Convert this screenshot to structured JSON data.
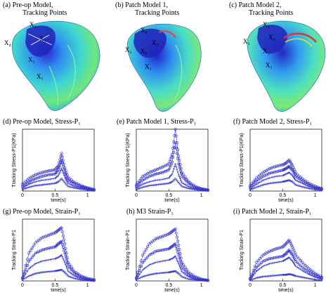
{
  "top_panels": [
    {
      "label_line1": "(a) Pre-op Model,",
      "label_line2": "Tracking Points",
      "points": [
        "X₃",
        "X₂",
        "X₄",
        "X₅",
        "X₁"
      ]
    },
    {
      "label_line1": "(b) Patch Model 1,",
      "label_line2": "Tracking Points",
      "points": [
        "X₄",
        "X₃",
        "X₂",
        "X₅",
        "X₁"
      ]
    },
    {
      "label_line1": "(c) Patch Model 2,",
      "label_line2": "Tracking Points",
      "points": [
        "X₃",
        "X₄",
        "X₂",
        "X₅",
        "X₁"
      ]
    }
  ],
  "plot_labels": {
    "d": "(d) Pre-op Model, Stress-P₁",
    "e": "(e) Patch Model 1, Stress-P₁",
    "f": "(f) Patch Model 2, Stress-P₁",
    "g": "(g) Pre-op Model, Strain-P₁",
    "h": "(h) M3 Strain-P₁",
    "i": "(i) Patch Model 2, Strain-P₁"
  },
  "xlabel": "time(s)",
  "stress_ylabel": "Tracking Stress-P1(KPa)",
  "strain_ylabel": "Tracking Strain-P1",
  "x_ticks": [
    "0",
    "0.5",
    "1"
  ],
  "colors": {
    "curve": "#3333cc",
    "axis": "#000000"
  },
  "chart_data": [
    {
      "id": "d",
      "type": "line",
      "xlim": [
        0,
        1.1
      ],
      "ylim": [
        0,
        160
      ],
      "series": [
        {
          "marker": "circle",
          "x": [
            0,
            0.1,
            0.2,
            0.3,
            0.4,
            0.5,
            0.55,
            0.6,
            0.65,
            0.7,
            0.8,
            0.9,
            1.0,
            1.1
          ],
          "values": [
            18,
            32,
            42,
            48,
            52,
            55,
            65,
            98,
            60,
            35,
            22,
            14,
            8,
            4
          ]
        },
        {
          "marker": "square",
          "x": [
            0,
            0.1,
            0.2,
            0.3,
            0.4,
            0.5,
            0.55,
            0.6,
            0.65,
            0.7,
            0.8,
            0.9,
            1.0,
            1.1
          ],
          "values": [
            12,
            24,
            32,
            38,
            42,
            44,
            55,
            80,
            48,
            28,
            18,
            12,
            7,
            3
          ]
        },
        {
          "marker": "plus",
          "x": [
            0,
            0.1,
            0.2,
            0.3,
            0.4,
            0.5,
            0.55,
            0.6,
            0.65,
            0.7,
            0.8,
            0.9,
            1.0,
            1.1
          ],
          "values": [
            8,
            18,
            24,
            28,
            30,
            33,
            40,
            58,
            36,
            20,
            12,
            8,
            5,
            2
          ]
        },
        {
          "marker": "x",
          "x": [
            0,
            0.1,
            0.2,
            0.3,
            0.4,
            0.5,
            0.55,
            0.6,
            0.65,
            0.7,
            0.8,
            0.9,
            1.0,
            1.1
          ],
          "values": [
            4,
            10,
            14,
            16,
            18,
            20,
            24,
            32,
            22,
            12,
            8,
            5,
            3,
            1
          ]
        }
      ]
    },
    {
      "id": "e",
      "type": "line",
      "xlim": [
        0,
        1.1
      ],
      "ylim": [
        0,
        160
      ],
      "series": [
        {
          "marker": "circle",
          "x": [
            0,
            0.1,
            0.2,
            0.3,
            0.4,
            0.5,
            0.55,
            0.6,
            0.65,
            0.7,
            0.8,
            0.9,
            1.0,
            1.1
          ],
          "values": [
            16,
            38,
            48,
            55,
            62,
            70,
            95,
            160,
            90,
            48,
            25,
            12,
            6,
            3
          ]
        },
        {
          "marker": "square",
          "x": [
            0,
            0.1,
            0.2,
            0.3,
            0.4,
            0.5,
            0.55,
            0.6,
            0.65,
            0.7,
            0.8,
            0.9,
            1.0,
            1.1
          ],
          "values": [
            12,
            28,
            38,
            44,
            48,
            55,
            75,
            125,
            70,
            38,
            20,
            10,
            5,
            2
          ]
        },
        {
          "marker": "plus",
          "x": [
            0,
            0.1,
            0.2,
            0.3,
            0.4,
            0.5,
            0.55,
            0.6,
            0.65,
            0.7,
            0.8,
            0.9,
            1.0,
            1.1
          ],
          "values": [
            8,
            18,
            24,
            28,
            30,
            34,
            44,
            70,
            42,
            22,
            12,
            6,
            3,
            1
          ]
        },
        {
          "marker": "x",
          "x": [
            0,
            0.1,
            0.2,
            0.3,
            0.4,
            0.5,
            0.55,
            0.6,
            0.65,
            0.7,
            0.8,
            0.9,
            1.0,
            1.1
          ],
          "values": [
            4,
            10,
            14,
            16,
            18,
            20,
            24,
            32,
            22,
            12,
            7,
            4,
            2,
            1
          ]
        }
      ]
    },
    {
      "id": "f",
      "type": "line",
      "xlim": [
        0,
        1.1
      ],
      "ylim": [
        0,
        160
      ],
      "series": [
        {
          "marker": "circle",
          "x": [
            0,
            0.1,
            0.2,
            0.3,
            0.4,
            0.5,
            0.55,
            0.6,
            0.65,
            0.7,
            0.8,
            0.9,
            1.0,
            1.1
          ],
          "values": [
            14,
            34,
            48,
            58,
            64,
            68,
            72,
            80,
            66,
            46,
            32,
            20,
            12,
            6
          ]
        },
        {
          "marker": "square",
          "x": [
            0,
            0.1,
            0.2,
            0.3,
            0.4,
            0.5,
            0.55,
            0.6,
            0.65,
            0.7,
            0.8,
            0.9,
            1.0,
            1.1
          ],
          "values": [
            10,
            26,
            38,
            46,
            50,
            54,
            58,
            64,
            54,
            38,
            26,
            16,
            10,
            5
          ]
        },
        {
          "marker": "plus",
          "x": [
            0,
            0.1,
            0.2,
            0.3,
            0.4,
            0.5,
            0.55,
            0.6,
            0.65,
            0.7,
            0.8,
            0.9,
            1.0,
            1.1
          ],
          "values": [
            6,
            18,
            28,
            34,
            38,
            40,
            44,
            48,
            40,
            28,
            20,
            12,
            7,
            3
          ]
        },
        {
          "marker": "x",
          "x": [
            0,
            0.1,
            0.2,
            0.3,
            0.4,
            0.5,
            0.55,
            0.6,
            0.65,
            0.7,
            0.8,
            0.9,
            1.0,
            1.1
          ],
          "values": [
            3,
            10,
            16,
            20,
            22,
            24,
            26,
            28,
            24,
            16,
            11,
            7,
            4,
            2
          ]
        }
      ]
    },
    {
      "id": "g",
      "type": "line",
      "xlim": [
        0,
        1.1
      ],
      "ylim": [
        0,
        1
      ],
      "series": [
        {
          "marker": "circle",
          "x": [
            0,
            0.1,
            0.2,
            0.3,
            0.4,
            0.5,
            0.55,
            0.6,
            0.65,
            0.7,
            0.8,
            0.9,
            1.0,
            1.1
          ],
          "values": [
            0.05,
            0.45,
            0.62,
            0.7,
            0.74,
            0.78,
            0.82,
            0.86,
            0.6,
            0.3,
            0.15,
            0.08,
            0.04,
            0.02
          ]
        },
        {
          "marker": "square",
          "x": [
            0,
            0.1,
            0.2,
            0.3,
            0.4,
            0.5,
            0.55,
            0.6,
            0.65,
            0.7,
            0.8,
            0.9,
            1.0,
            1.1
          ],
          "values": [
            0.04,
            0.32,
            0.45,
            0.5,
            0.53,
            0.55,
            0.6,
            0.64,
            0.45,
            0.24,
            0.12,
            0.06,
            0.03,
            0.01
          ]
        },
        {
          "marker": "plus",
          "x": [
            0,
            0.1,
            0.2,
            0.3,
            0.4,
            0.5,
            0.55,
            0.6,
            0.65,
            0.7,
            0.8,
            0.9,
            1.0,
            1.1
          ],
          "values": [
            0.03,
            0.2,
            0.28,
            0.32,
            0.34,
            0.36,
            0.38,
            0.42,
            0.3,
            0.16,
            0.08,
            0.04,
            0.02,
            0.01
          ]
        },
        {
          "marker": "x",
          "x": [
            0,
            0.1,
            0.2,
            0.3,
            0.4,
            0.5,
            0.55,
            0.6,
            0.65,
            0.7,
            0.8,
            0.9,
            1.0,
            1.1
          ],
          "values": [
            0.02,
            0.08,
            0.12,
            0.14,
            0.15,
            0.16,
            0.17,
            0.18,
            0.14,
            0.08,
            0.04,
            0.02,
            0.01,
            0.0
          ]
        }
      ]
    },
    {
      "id": "h",
      "type": "line",
      "xlim": [
        0,
        1.1
      ],
      "ylim": [
        0,
        1
      ],
      "series": [
        {
          "marker": "circle",
          "x": [
            0,
            0.1,
            0.2,
            0.3,
            0.4,
            0.5,
            0.55,
            0.6,
            0.65,
            0.7,
            0.8,
            0.9,
            1.0,
            1.1
          ],
          "values": [
            0.05,
            0.42,
            0.6,
            0.68,
            0.72,
            0.76,
            0.8,
            0.84,
            0.58,
            0.3,
            0.14,
            0.07,
            0.03,
            0.01
          ]
        },
        {
          "marker": "square",
          "x": [
            0,
            0.1,
            0.2,
            0.3,
            0.4,
            0.5,
            0.55,
            0.6,
            0.65,
            0.7,
            0.8,
            0.9,
            1.0,
            1.1
          ],
          "values": [
            0.04,
            0.3,
            0.42,
            0.48,
            0.5,
            0.52,
            0.56,
            0.6,
            0.42,
            0.22,
            0.1,
            0.05,
            0.02,
            0.01
          ]
        },
        {
          "marker": "plus",
          "x": [
            0,
            0.1,
            0.2,
            0.3,
            0.4,
            0.5,
            0.55,
            0.6,
            0.65,
            0.7,
            0.8,
            0.9,
            1.0,
            1.1
          ],
          "values": [
            0.03,
            0.18,
            0.26,
            0.3,
            0.32,
            0.34,
            0.36,
            0.4,
            0.28,
            0.15,
            0.07,
            0.03,
            0.02,
            0.01
          ]
        },
        {
          "marker": "x",
          "x": [
            0,
            0.1,
            0.2,
            0.3,
            0.4,
            0.5,
            0.55,
            0.6,
            0.65,
            0.7,
            0.8,
            0.9,
            1.0,
            1.1
          ],
          "values": [
            0.02,
            0.07,
            0.1,
            0.12,
            0.13,
            0.14,
            0.15,
            0.16,
            0.12,
            0.07,
            0.03,
            0.02,
            0.01,
            0.0
          ]
        }
      ]
    },
    {
      "id": "i",
      "type": "line",
      "xlim": [
        0,
        1.1
      ],
      "ylim": [
        0,
        1
      ],
      "series": [
        {
          "marker": "circle",
          "x": [
            0,
            0.1,
            0.2,
            0.3,
            0.4,
            0.5,
            0.55,
            0.6,
            0.65,
            0.7,
            0.8,
            0.9,
            1.0,
            1.1
          ],
          "values": [
            0.04,
            0.3,
            0.42,
            0.48,
            0.52,
            0.55,
            0.6,
            0.66,
            0.55,
            0.42,
            0.3,
            0.2,
            0.12,
            0.06
          ]
        },
        {
          "marker": "square",
          "x": [
            0,
            0.1,
            0.2,
            0.3,
            0.4,
            0.5,
            0.55,
            0.6,
            0.65,
            0.7,
            0.8,
            0.9,
            1.0,
            1.1
          ],
          "values": [
            0.03,
            0.22,
            0.32,
            0.36,
            0.38,
            0.4,
            0.44,
            0.5,
            0.42,
            0.32,
            0.22,
            0.15,
            0.09,
            0.05
          ]
        },
        {
          "marker": "plus",
          "x": [
            0,
            0.1,
            0.2,
            0.3,
            0.4,
            0.5,
            0.55,
            0.6,
            0.65,
            0.7,
            0.8,
            0.9,
            1.0,
            1.1
          ],
          "values": [
            0.02,
            0.16,
            0.24,
            0.28,
            0.3,
            0.32,
            0.35,
            0.38,
            0.32,
            0.24,
            0.17,
            0.11,
            0.06,
            0.03
          ]
        },
        {
          "marker": "x",
          "x": [
            0,
            0.1,
            0.2,
            0.3,
            0.4,
            0.5,
            0.55,
            0.6,
            0.65,
            0.7,
            0.8,
            0.9,
            1.0,
            1.1
          ],
          "values": [
            0.01,
            0.05,
            0.07,
            0.08,
            0.09,
            0.1,
            0.1,
            0.11,
            0.1,
            0.08,
            0.06,
            0.04,
            0.02,
            0.01
          ]
        }
      ]
    }
  ]
}
